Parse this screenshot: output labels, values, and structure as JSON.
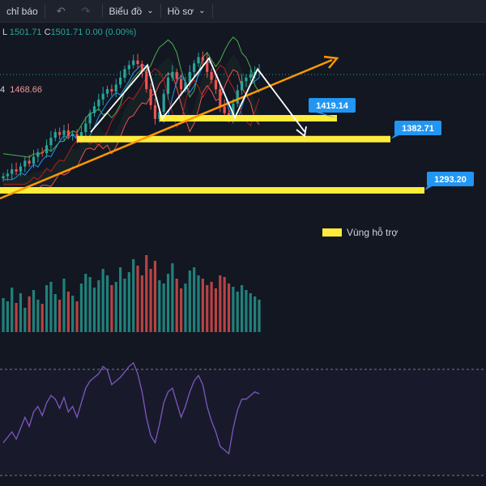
{
  "toolbar": {
    "indicators_label": "chỉ báo",
    "undo_icon": "undo-icon",
    "redo_icon": "redo-icon",
    "chart_menu_label": "Biểu đồ",
    "profile_menu_label": "Hồ sơ"
  },
  "ohlc": {
    "low_label": "L",
    "low_value": "1501.71",
    "close_label": "C",
    "close_value": "1501.71",
    "change_value": "0.00 (0.00%)"
  },
  "indicator_readout": {
    "prefix": "4",
    "value": "1468.66"
  },
  "legend": {
    "label": "Vùng hỗ trợ",
    "color": "#ffeb3b"
  },
  "colors": {
    "background": "#131722",
    "up": "#26a69a",
    "down": "#ef5350",
    "support_zone": "#ffeb3b",
    "trendline": "#ff9800",
    "price_label_bg": "#2196f3",
    "rsi_line": "#7e57c2",
    "ichimoku_span_a": "#4caf50",
    "ichimoku_span_b": "#ef5350",
    "tenkan": "#2196f3",
    "kijun": "#b71c1c"
  },
  "chart_data": {
    "type": "candlestick",
    "price_axis_range": [
      1270,
      1545
    ],
    "support_levels": [
      {
        "label": "1419.14",
        "value": 1419.14
      },
      {
        "label": "1382.71",
        "value": 1382.71
      },
      {
        "label": "1293.20",
        "value": 1293.2
      }
    ],
    "last_close": 1501.71,
    "close_series": [
      1318,
      1322,
      1330,
      1326,
      1335,
      1345,
      1340,
      1352,
      1360,
      1358,
      1372,
      1385,
      1395,
      1390,
      1398,
      1388,
      1392,
      1385,
      1395,
      1410,
      1428,
      1440,
      1452,
      1462,
      1470,
      1466,
      1478,
      1490,
      1505,
      1512,
      1520,
      1514,
      1500,
      1470,
      1442,
      1418,
      1430,
      1462,
      1490,
      1500,
      1488,
      1470,
      1482,
      1500,
      1515,
      1526,
      1520,
      1500,
      1486,
      1470,
      1440,
      1428,
      1420,
      1445,
      1468,
      1484,
      1490,
      1496,
      1500,
      1501.71
    ],
    "volume": [
      42,
      38,
      55,
      36,
      48,
      30,
      44,
      52,
      40,
      35,
      58,
      62,
      47,
      40,
      66,
      50,
      45,
      38,
      60,
      72,
      68,
      55,
      64,
      78,
      70,
      58,
      62,
      80,
      66,
      74,
      90,
      82,
      70,
      95,
      78,
      88,
      64,
      60,
      72,
      85,
      66,
      54,
      60,
      76,
      80,
      70,
      66,
      58,
      62,
      54,
      70,
      68,
      60,
      56,
      50,
      58,
      52,
      48,
      44,
      40
    ],
    "rsi": [
      38,
      41,
      44,
      40,
      46,
      52,
      47,
      55,
      58,
      53,
      60,
      64,
      62,
      57,
      63,
      55,
      58,
      52,
      60,
      68,
      72,
      74,
      76,
      80,
      78,
      70,
      72,
      74,
      77,
      80,
      82,
      76,
      66,
      52,
      42,
      38,
      48,
      60,
      66,
      68,
      60,
      52,
      58,
      66,
      72,
      75,
      70,
      58,
      50,
      44,
      36,
      34,
      32,
      46,
      56,
      62,
      62,
      64,
      66,
      65
    ],
    "zigzag_pattern": [
      1395,
      1512,
      1418,
      1524,
      1420,
      1505,
      1396
    ]
  }
}
